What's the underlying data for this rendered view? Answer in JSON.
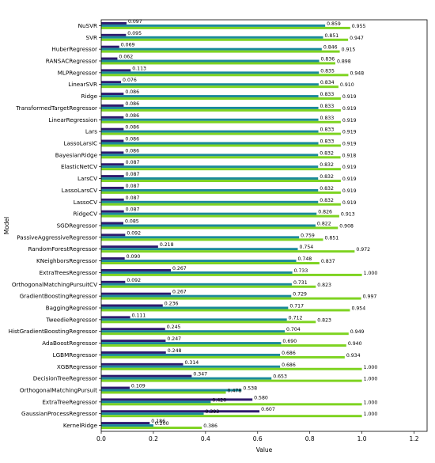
{
  "chart_data": {
    "type": "bar",
    "orientation": "horizontal",
    "xlabel": "Value",
    "ylabel": "Model",
    "xlim": [
      0,
      1.25
    ],
    "xticks": [
      "0.0",
      "0.2",
      "0.4",
      "0.6",
      "0.8",
      "1.0",
      "1.2"
    ],
    "grid": false,
    "categories": [
      "NuSVR",
      "SVR",
      "HuberRegressor",
      "RANSACRegressor",
      "MLPRegressor",
      "LinearSVR",
      "Ridge",
      "TransformedTargetRegressor",
      "LinearRegression",
      "Lars",
      "LassoLarsIC",
      "BayesianRidge",
      "ElasticNetCV",
      "LarsCV",
      "LassoLarsCV",
      "LassoCV",
      "RidgeCV",
      "SGDRegressor",
      "PassiveAggressiveRegressor",
      "RandomForestRegressor",
      "KNeighborsRegressor",
      "ExtraTreesRegressor",
      "OrthogonalMatchingPursuitCV",
      "GradientBoostingRegressor",
      "BaggingRegressor",
      "TweedieRegressor",
      "HistGradientBoostingRegressor",
      "AdaBoostRegressor",
      "LGBMRegressor",
      "XGBRegressor",
      "DecisionTreeRegressor",
      "OrthogonalMatchingPursuit",
      "ExtraTreeRegressor",
      "GaussianProcessRegressor",
      "KernelRidge"
    ],
    "series": [
      {
        "color": "#2e1a6e",
        "values": [
          0.097,
          0.095,
          0.069,
          0.062,
          0.113,
          0.076,
          0.086,
          0.086,
          0.086,
          0.086,
          0.086,
          0.086,
          0.087,
          0.087,
          0.087,
          0.087,
          0.087,
          0.085,
          0.092,
          0.218,
          0.09,
          0.267,
          0.092,
          0.267,
          0.236,
          0.111,
          0.245,
          0.247,
          0.248,
          0.314,
          0.347,
          0.109,
          0.58,
          0.607,
          0.186
        ],
        "labels": [
          "0.097",
          "0.095",
          "0.069",
          "0.062",
          "0.113",
          "0.076",
          "0.086",
          "0.086",
          "0.086",
          "0.086",
          "0.086",
          "0.086",
          "0.087",
          "0.087",
          "0.087",
          "0.087",
          "0.087",
          "0.085",
          "0.092",
          "0.218",
          "0.090",
          "0.267",
          "0.092",
          "0.267",
          "0.236",
          "0.111",
          "0.245",
          "0.247",
          "0.248",
          "0.314",
          "0.347",
          "0.109",
          "0.580",
          "0.607",
          "0.186"
        ]
      },
      {
        "color": "#1b8a9a",
        "values": [
          0.859,
          0.851,
          0.846,
          0.836,
          0.835,
          0.834,
          0.833,
          0.833,
          0.833,
          0.833,
          0.833,
          0.832,
          0.832,
          0.832,
          0.832,
          0.832,
          0.826,
          0.822,
          0.759,
          0.754,
          0.748,
          0.733,
          0.731,
          0.729,
          0.717,
          0.712,
          0.704,
          0.69,
          0.686,
          0.686,
          0.653,
          0.538,
          0.42,
          0.393,
          0.2
        ],
        "labels": [
          "0.859",
          "0.851",
          "0.846",
          "0.836",
          "0.835",
          "0.834",
          "0.833",
          "0.833",
          "0.833",
          "0.833",
          "0.833",
          "0.832",
          "0.832",
          "0.832",
          "0.832",
          "0.832",
          "0.826",
          "0.822",
          "0.759",
          "0.754",
          "0.748",
          "0.733",
          "0.731",
          "0.729",
          "0.717",
          "0.712",
          "0.704",
          "0.690",
          "0.686",
          "0.686",
          "0.653",
          "0.538",
          "0.420",
          "0.393",
          "0.200"
        ]
      },
      {
        "color": "#7ed321",
        "values": [
          0.955,
          0.947,
          0.915,
          0.898,
          0.948,
          0.91,
          0.919,
          0.919,
          0.919,
          0.919,
          0.919,
          0.918,
          0.919,
          0.919,
          0.919,
          0.919,
          0.913,
          0.908,
          0.851,
          0.972,
          0.837,
          1.0,
          0.823,
          0.997,
          0.954,
          0.823,
          0.949,
          0.94,
          0.934,
          1.0,
          1.0,
          0.478,
          1.0,
          1.0,
          0.386
        ],
        "labels": [
          "0.955",
          "0.947",
          "0.915",
          "0.898",
          "0.948",
          "0.910",
          "0.919",
          "0.919",
          "0.919",
          "0.919",
          "0.919",
          "0.918",
          "0.919",
          "0.919",
          "0.919",
          "0.919",
          "0.913",
          "0.908",
          "0.851",
          "0.972",
          "0.837",
          "1.000",
          "0.823",
          "0.997",
          "0.954",
          "0.823",
          "0.949",
          "0.940",
          "0.934",
          "1.000",
          "1.000",
          "0.478",
          "1.000",
          "1.000",
          "0.386"
        ]
      }
    ]
  }
}
